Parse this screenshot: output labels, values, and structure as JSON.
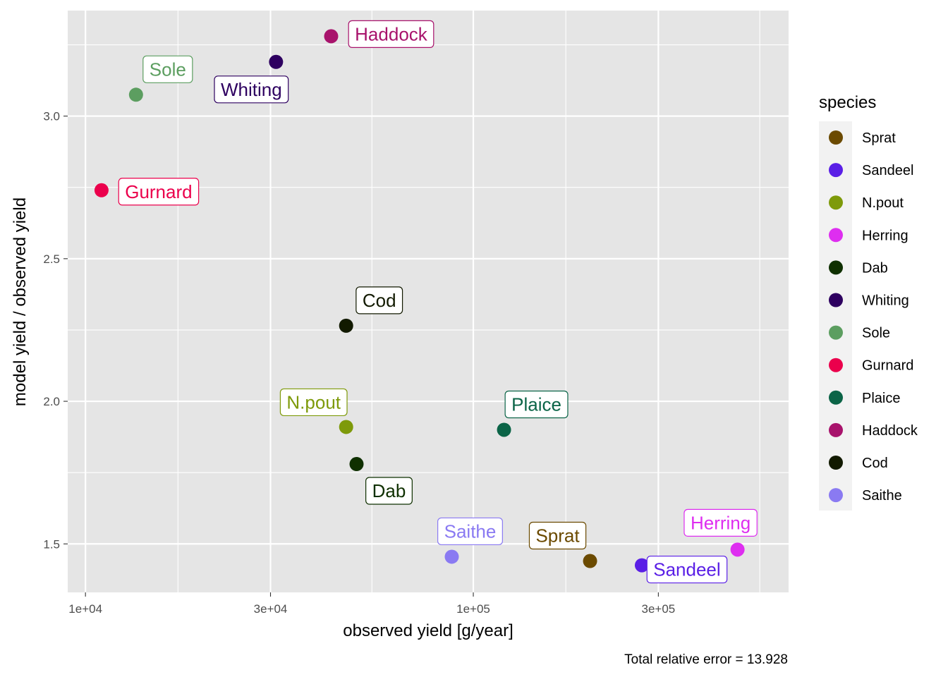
{
  "chart_data": {
    "type": "scatter",
    "xlabel": "observed yield [g/year]",
    "ylabel": "model yield / observed yield",
    "x_scale": "log10",
    "xlim": [
      9000,
      650000
    ],
    "ylim": [
      1.33,
      3.37
    ],
    "x_ticks": [
      {
        "value": 10000,
        "label": "1e+04"
      },
      {
        "value": 30000,
        "label": "3e+04"
      },
      {
        "value": 100000,
        "label": "1e+05"
      },
      {
        "value": 300000,
        "label": "3e+05"
      }
    ],
    "x_minor_ticks": [
      17320,
      54770,
      173200,
      547700
    ],
    "y_ticks": [
      {
        "value": 1.5,
        "label": "1.5"
      },
      {
        "value": 2.0,
        "label": "2.0"
      },
      {
        "value": 2.5,
        "label": "2.5"
      },
      {
        "value": 3.0,
        "label": "3.0"
      }
    ],
    "y_minor_ticks": [
      1.75,
      2.25,
      2.75,
      3.25
    ],
    "grid": true,
    "legend_title": "species",
    "legend_placement": "right",
    "caption": "Total relative error = 13.928",
    "series": [
      {
        "name": "Sprat",
        "color": "#6B4A00",
        "x": 200000,
        "y": 1.44,
        "label_dx": -46,
        "label_dy": -36
      },
      {
        "name": "Sandeel",
        "color": "#5A1FE6",
        "x": 272000,
        "y": 1.425,
        "label_dx": 64,
        "label_dy": 6
      },
      {
        "name": "N.pout",
        "color": "#7E9A0A",
        "x": 47000,
        "y": 1.91,
        "label_dx": -46,
        "label_dy": -35
      },
      {
        "name": "Herring",
        "color": "#DE2EF0",
        "x": 480000,
        "y": 1.48,
        "label_dx": -24,
        "label_dy": -38
      },
      {
        "name": "Dab",
        "color": "#0F3000",
        "x": 50000,
        "y": 1.78,
        "label_dx": 46,
        "label_dy": 38
      },
      {
        "name": "Whiting",
        "color": "#2E0060",
        "x": 31000,
        "y": 3.19,
        "label_dx": -35,
        "label_dy": 39
      },
      {
        "name": "Sole",
        "color": "#5C9E60",
        "x": 13500,
        "y": 3.075,
        "label_dx": 45,
        "label_dy": -36
      },
      {
        "name": "Gurnard",
        "color": "#EB004C",
        "x": 11000,
        "y": 2.74,
        "label_dx": 81,
        "label_dy": 2
      },
      {
        "name": "Plaice",
        "color": "#0B6447",
        "x": 120000,
        "y": 1.9,
        "label_dx": 46,
        "label_dy": -36
      },
      {
        "name": "Haddock",
        "color": "#A8136C",
        "x": 43000,
        "y": 3.28,
        "label_dx": 85,
        "label_dy": -3
      },
      {
        "name": "Cod",
        "color": "#121A00",
        "x": 47000,
        "y": 2.265,
        "label_dx": 47,
        "label_dy": -36
      },
      {
        "name": "Saithe",
        "color": "#8A7AF2",
        "x": 88000,
        "y": 1.455,
        "label_dx": 26,
        "label_dy": -36
      }
    ]
  }
}
